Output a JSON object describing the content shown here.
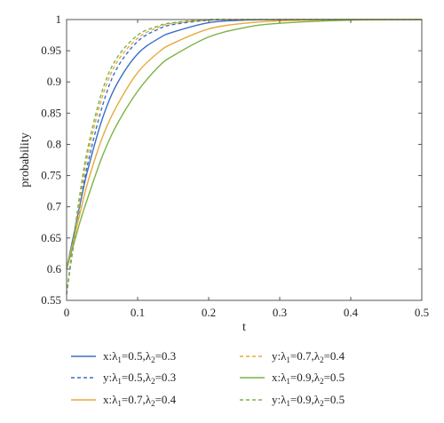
{
  "chart_data": {
    "type": "line",
    "title": "",
    "xlabel": "t",
    "ylabel": "probability",
    "xlim": [
      0,
      0.5
    ],
    "ylim": [
      0.55,
      1
    ],
    "xticks": [
      0,
      0.1,
      0.2,
      0.3,
      0.4,
      0.5
    ],
    "xtick_labels": [
      "0",
      "0.1",
      "0.2",
      "0.3",
      "0.4",
      "0.5"
    ],
    "yticks": [
      0.55,
      0.6,
      0.65,
      0.7,
      0.75,
      0.8,
      0.85,
      0.9,
      0.95,
      1
    ],
    "ytick_labels": [
      "0.55",
      "0.6",
      "0.65",
      "0.7",
      "0.75",
      "0.8",
      "0.85",
      "0.9",
      "0.95",
      "1"
    ],
    "grid": false,
    "legend_position": "bottom",
    "series": [
      {
        "name": "x:λ1=0.5,λ2=0.3",
        "legend": {
          "var": "x",
          "l1": "0.5",
          "l2": "0.3"
        },
        "color": "#3b6fc4",
        "dash": "solid",
        "x": [
          0,
          0.01,
          0.02,
          0.03,
          0.05,
          0.07,
          0.1,
          0.13,
          0.15,
          0.2,
          0.25,
          0.3,
          0.4,
          0.5
        ],
        "y": [
          0.6,
          0.655,
          0.71,
          0.76,
          0.84,
          0.895,
          0.945,
          0.97,
          0.98,
          0.995,
          0.999,
          1.0,
          1.0,
          1.0
        ]
      },
      {
        "name": "y:λ1=0.5,λ2=0.3",
        "legend": {
          "var": "y",
          "l1": "0.5",
          "l2": "0.3"
        },
        "color": "#3b6fc4",
        "dash": "dashed",
        "x": [
          0,
          0.01,
          0.02,
          0.03,
          0.05,
          0.07,
          0.1,
          0.13,
          0.15,
          0.2,
          0.25,
          0.3,
          0.4,
          0.5
        ],
        "y": [
          0.56,
          0.64,
          0.71,
          0.77,
          0.86,
          0.92,
          0.965,
          0.985,
          0.992,
          0.999,
          1.0,
          1.0,
          1.0,
          1.0
        ]
      },
      {
        "name": "x:λ1=0.7,λ2=0.4",
        "legend": {
          "var": "x",
          "l1": "0.7",
          "l2": "0.4"
        },
        "color": "#e8a93a",
        "dash": "solid",
        "x": [
          0,
          0.01,
          0.02,
          0.03,
          0.05,
          0.07,
          0.1,
          0.13,
          0.15,
          0.2,
          0.25,
          0.3,
          0.4,
          0.5
        ],
        "y": [
          0.6,
          0.648,
          0.695,
          0.74,
          0.81,
          0.86,
          0.915,
          0.948,
          0.962,
          0.985,
          0.994,
          0.998,
          1.0,
          1.0
        ]
      },
      {
        "name": "y:λ1=0.7,λ2=0.4",
        "legend": {
          "var": "y",
          "l1": "0.7",
          "l2": "0.4"
        },
        "color": "#e8a93a",
        "dash": "dashed",
        "x": [
          0,
          0.01,
          0.02,
          0.03,
          0.05,
          0.07,
          0.1,
          0.13,
          0.15,
          0.2,
          0.25,
          0.3,
          0.4,
          0.5
        ],
        "y": [
          0.56,
          0.645,
          0.72,
          0.785,
          0.875,
          0.93,
          0.97,
          0.988,
          0.994,
          0.999,
          1.0,
          1.0,
          1.0,
          1.0
        ]
      },
      {
        "name": "x:λ1=0.9,λ2=0.5",
        "legend": {
          "var": "x",
          "l1": "0.9",
          "l2": "0.5"
        },
        "color": "#7cb342",
        "dash": "solid",
        "x": [
          0,
          0.01,
          0.02,
          0.03,
          0.05,
          0.07,
          0.1,
          0.13,
          0.15,
          0.2,
          0.25,
          0.3,
          0.4,
          0.5
        ],
        "y": [
          0.6,
          0.64,
          0.68,
          0.715,
          0.78,
          0.83,
          0.885,
          0.925,
          0.942,
          0.972,
          0.987,
          0.994,
          0.999,
          1.0
        ]
      },
      {
        "name": "y:λ1=0.9,λ2=0.5",
        "legend": {
          "var": "y",
          "l1": "0.9",
          "l2": "0.5"
        },
        "color": "#7cb342",
        "dash": "dashed",
        "x": [
          0,
          0.01,
          0.02,
          0.03,
          0.05,
          0.07,
          0.1,
          0.13,
          0.15,
          0.2,
          0.25,
          0.3,
          0.4,
          0.5
        ],
        "y": [
          0.56,
          0.65,
          0.73,
          0.795,
          0.885,
          0.937,
          0.975,
          0.99,
          0.995,
          1.0,
          1.0,
          1.0,
          1.0,
          1.0
        ]
      }
    ]
  }
}
